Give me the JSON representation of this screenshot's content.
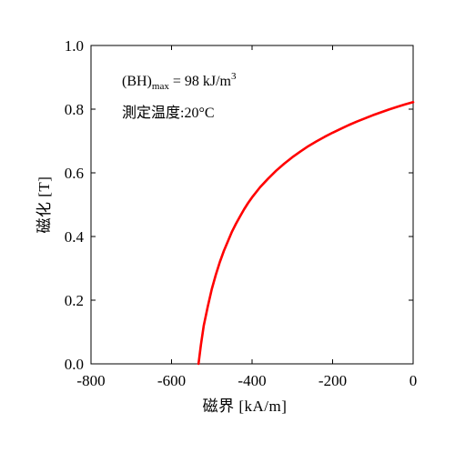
{
  "chart_data": {
    "type": "line",
    "xlabel": "磁界 [kA/m]",
    "ylabel": "磁化 [T]",
    "xlim": [
      -800,
      0
    ],
    "ylim": [
      0.0,
      1.0
    ],
    "x_ticks": [
      -800,
      -600,
      -400,
      -200,
      0
    ],
    "x_tick_labels": [
      "-800",
      "-600",
      "-400",
      "-200",
      "0"
    ],
    "y_ticks": [
      0.0,
      0.2,
      0.4,
      0.6,
      0.8,
      1.0
    ],
    "y_tick_labels": [
      "0.0",
      "0.2",
      "0.4",
      "0.6",
      "0.8",
      "1.0"
    ],
    "grid": false,
    "annotations": {
      "bhmax_prefix": "(BH)",
      "bhmax_sub": "max",
      "bhmax_value": " = 98 kJ/m",
      "bhmax_sup": "3",
      "temperature": "測定温度:20°C"
    },
    "series": [
      {
        "color": "#ff0000",
        "x": [
          -533,
          -527,
          -520,
          -510,
          -500,
          -490,
          -480,
          -470,
          -460,
          -450,
          -440,
          -430,
          -420,
          -410,
          -400,
          -380,
          -360,
          -340,
          -320,
          -300,
          -280,
          -260,
          -240,
          -220,
          -200,
          -180,
          -160,
          -140,
          -120,
          -100,
          -80,
          -60,
          -40,
          -20,
          0
        ],
        "y": [
          0.0,
          0.06,
          0.12,
          0.18,
          0.235,
          0.28,
          0.32,
          0.355,
          0.385,
          0.415,
          0.44,
          0.463,
          0.485,
          0.505,
          0.523,
          0.555,
          0.582,
          0.607,
          0.629,
          0.649,
          0.667,
          0.684,
          0.699,
          0.713,
          0.726,
          0.738,
          0.75,
          0.761,
          0.771,
          0.781,
          0.79,
          0.799,
          0.807,
          0.815,
          0.822
        ]
      }
    ]
  }
}
